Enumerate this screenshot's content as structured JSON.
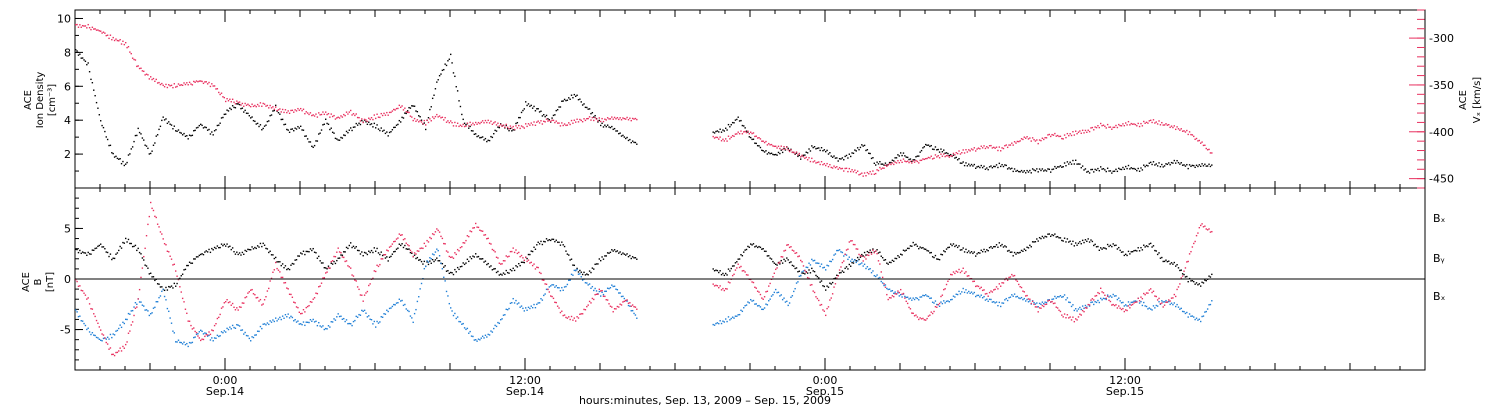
{
  "colors": {
    "black": "#000000",
    "pink": "#e8305f",
    "blue": "#1f7fd6"
  },
  "chart_data": [
    {
      "type": "scatter",
      "panel": "plasma",
      "x_range": [
        -6.0,
        48.0
      ],
      "left_axis": {
        "label_lines": [
          "ACE",
          "Ion Density",
          "[cm⁻³]"
        ],
        "ylim": [
          0,
          10.5
        ],
        "ticks": [
          2,
          4,
          6,
          8,
          10
        ],
        "tick_labels": [
          "2",
          "4",
          "6",
          "8",
          "10"
        ]
      },
      "right_axis": {
        "label": "ACE",
        "label2": "Vₓ [km/s]",
        "ylim": [
          -460,
          -270
        ],
        "ticks": [
          -450,
          -400,
          -350,
          -300
        ],
        "tick_labels": [
          "-450",
          "-400",
          "-350",
          "-300"
        ],
        "color": "#e8305f"
      },
      "series": [
        {
          "axis": "left",
          "color": "#000000",
          "x": [
            -6.0,
            -5.5,
            -5.0,
            -4.5,
            -4.0,
            -3.5,
            -3.0,
            -2.5,
            -2.0,
            -1.5,
            -1.0,
            -0.5,
            0.0,
            0.5,
            1.0,
            1.5,
            2.0,
            2.5,
            3.0,
            3.5,
            4.0,
            4.5,
            5.0,
            5.5,
            6.0,
            6.5,
            7.0,
            7.5,
            8.0,
            8.5,
            9.0,
            9.5,
            10.0,
            10.5,
            11.0,
            11.5,
            12.0,
            12.5,
            13.0,
            13.5,
            14.0,
            14.5,
            15.0,
            15.5,
            16.0,
            16.5,
            19.5,
            20.0,
            20.5,
            21.0,
            21.5,
            22.0,
            22.5,
            23.0,
            23.5,
            24.0,
            24.5,
            25.0,
            25.5,
            26.0,
            26.5,
            27.0,
            27.5,
            28.0,
            28.5,
            29.0,
            29.5,
            30.0,
            30.5,
            31.0,
            31.5,
            32.0,
            32.5,
            33.0,
            33.5,
            34.0,
            34.5,
            35.0,
            35.5,
            36.0,
            36.5,
            37.0,
            37.5,
            38.0,
            38.5,
            39.0,
            39.5
          ],
          "y": [
            8.2,
            7.3,
            4.0,
            2.0,
            1.4,
            3.5,
            2.0,
            4.2,
            3.5,
            3.0,
            3.8,
            3.2,
            4.5,
            5.0,
            4.2,
            3.5,
            4.8,
            3.4,
            3.6,
            2.4,
            4.0,
            2.8,
            3.5,
            4.0,
            3.7,
            3.2,
            4.0,
            5.0,
            3.6,
            6.5,
            7.8,
            4.0,
            3.2,
            2.8,
            3.8,
            3.4,
            5.0,
            4.6,
            4.0,
            5.2,
            5.5,
            4.7,
            3.8,
            3.6,
            3.0,
            2.6,
            3.3,
            3.5,
            4.2,
            3.0,
            2.2,
            2.0,
            2.4,
            1.8,
            2.5,
            2.2,
            1.7,
            2.0,
            2.6,
            1.5,
            1.4,
            2.1,
            1.6,
            2.6,
            2.3,
            2.0,
            1.5,
            1.3,
            1.2,
            1.4,
            1.1,
            1.0,
            1.1,
            1.1,
            1.4,
            1.6,
            1.0,
            1.2,
            1.0,
            1.3,
            1.1,
            1.5,
            1.4,
            1.6,
            1.3,
            1.4,
            1.3
          ]
        },
        {
          "axis": "right",
          "color": "#e8305f",
          "x": [
            -6.0,
            -5.5,
            -5.0,
            -4.5,
            -4.0,
            -3.5,
            -3.0,
            -2.5,
            -2.0,
            -1.5,
            -1.0,
            -0.5,
            0.0,
            0.5,
            1.0,
            1.5,
            2.0,
            2.5,
            3.0,
            3.5,
            4.0,
            4.5,
            5.0,
            5.5,
            6.0,
            6.5,
            7.0,
            7.5,
            8.0,
            8.5,
            9.0,
            9.5,
            10.0,
            10.5,
            11.0,
            11.5,
            12.0,
            12.5,
            13.0,
            13.5,
            14.0,
            14.5,
            15.0,
            15.5,
            16.0,
            16.5,
            19.5,
            20.0,
            20.5,
            21.0,
            21.5,
            22.0,
            22.5,
            23.0,
            23.5,
            24.0,
            24.5,
            25.0,
            25.5,
            26.0,
            26.5,
            27.0,
            27.5,
            28.0,
            28.5,
            29.0,
            29.5,
            30.0,
            30.5,
            31.0,
            31.5,
            32.0,
            32.5,
            33.0,
            33.5,
            34.0,
            34.5,
            35.0,
            35.5,
            36.0,
            36.5,
            37.0,
            37.5,
            38.0,
            38.5,
            39.0,
            39.5
          ],
          "y": [
            -285,
            -287,
            -292,
            -300,
            -305,
            -330,
            -342,
            -350,
            -350,
            -348,
            -345,
            -350,
            -365,
            -368,
            -372,
            -370,
            -375,
            -378,
            -376,
            -382,
            -380,
            -385,
            -378,
            -388,
            -383,
            -380,
            -372,
            -385,
            -390,
            -382,
            -390,
            -393,
            -390,
            -388,
            -392,
            -395,
            -393,
            -390,
            -387,
            -392,
            -388,
            -385,
            -387,
            -384,
            -385,
            -386,
            -405,
            -408,
            -400,
            -400,
            -410,
            -415,
            -418,
            -425,
            -430,
            -435,
            -438,
            -440,
            -445,
            -442,
            -435,
            -430,
            -432,
            -428,
            -425,
            -425,
            -420,
            -418,
            -415,
            -418,
            -412,
            -405,
            -410,
            -402,
            -405,
            -400,
            -398,
            -392,
            -395,
            -390,
            -392,
            -388,
            -390,
            -395,
            -400,
            -410,
            -425
          ]
        }
      ]
    },
    {
      "type": "scatter",
      "panel": "magnetic-field",
      "x_range": [
        -6.0,
        48.0
      ],
      "left_axis": {
        "label_lines": [
          "ACE",
          "B",
          "[nT]"
        ],
        "ylim": [
          -9,
          9
        ],
        "ticks": [
          -5,
          0,
          5
        ],
        "tick_labels": [
          "-5",
          "0",
          "5"
        ]
      },
      "zero_line": 0,
      "series": [
        {
          "name": "Bₓ",
          "color": "#000000",
          "x": [
            -6.0,
            -5.5,
            -5.0,
            -4.5,
            -4.0,
            -3.5,
            -3.0,
            -2.5,
            -2.0,
            -1.5,
            -1.0,
            -0.5,
            0.0,
            0.5,
            1.0,
            1.5,
            2.0,
            2.5,
            3.0,
            3.5,
            4.0,
            4.5,
            5.0,
            5.5,
            6.0,
            6.5,
            7.0,
            7.5,
            8.0,
            8.5,
            9.0,
            9.5,
            10.0,
            10.5,
            11.0,
            11.5,
            12.0,
            12.5,
            13.0,
            13.5,
            14.0,
            14.5,
            15.0,
            15.5,
            16.0,
            16.5,
            19.5,
            20.0,
            20.5,
            21.0,
            21.5,
            22.0,
            22.5,
            23.0,
            23.5,
            24.0,
            24.5,
            25.0,
            25.5,
            26.0,
            26.5,
            27.0,
            27.5,
            28.0,
            28.5,
            29.0,
            29.5,
            30.0,
            30.5,
            31.0,
            31.5,
            32.0,
            32.5,
            33.0,
            33.5,
            34.0,
            34.5,
            35.0,
            35.5,
            36.0,
            36.5,
            37.0,
            37.5,
            38.0,
            38.5,
            39.0,
            39.5
          ],
          "y": [
            3.0,
            2.5,
            3.5,
            2.0,
            4.0,
            3.0,
            0.5,
            -1.0,
            -0.5,
            1.5,
            2.5,
            3.0,
            3.5,
            2.5,
            3.0,
            3.5,
            2.0,
            1.0,
            2.5,
            3.0,
            1.0,
            2.0,
            3.5,
            2.5,
            3.0,
            2.0,
            3.5,
            2.5,
            1.5,
            2.0,
            0.5,
            1.5,
            2.5,
            1.5,
            0.5,
            1.0,
            2.0,
            3.5,
            4.0,
            3.5,
            1.0,
            0.5,
            2.0,
            3.0,
            2.5,
            2.0,
            1.0,
            0.5,
            2.0,
            3.5,
            3.0,
            1.5,
            2.0,
            0.5,
            1.0,
            -1.0,
            0.5,
            1.5,
            2.5,
            3.0,
            1.5,
            2.5,
            3.5,
            3.0,
            2.0,
            3.5,
            3.0,
            2.5,
            3.0,
            3.5,
            2.5,
            3.0,
            4.0,
            4.5,
            4.0,
            3.5,
            4.0,
            3.0,
            3.5,
            2.5,
            3.0,
            3.5,
            2.0,
            1.5,
            0.0,
            -0.5,
            0.5
          ]
        },
        {
          "name": "Bᵧ",
          "color": "#1f7fd6",
          "x": [
            -6.0,
            -5.5,
            -5.0,
            -4.5,
            -4.0,
            -3.5,
            -3.0,
            -2.5,
            -2.0,
            -1.5,
            -1.0,
            -0.5,
            0.0,
            0.5,
            1.0,
            1.5,
            2.0,
            2.5,
            3.0,
            3.5,
            4.0,
            4.5,
            5.0,
            5.5,
            6.0,
            6.5,
            7.0,
            7.5,
            8.0,
            8.5,
            9.0,
            9.5,
            10.0,
            10.5,
            11.0,
            11.5,
            12.0,
            12.5,
            13.0,
            13.5,
            14.0,
            14.5,
            15.0,
            15.5,
            16.0,
            16.5,
            19.5,
            20.0,
            20.5,
            21.0,
            21.5,
            22.0,
            22.5,
            23.0,
            23.5,
            24.0,
            24.5,
            25.0,
            25.5,
            26.0,
            26.5,
            27.0,
            27.5,
            28.0,
            28.5,
            29.0,
            29.5,
            30.0,
            30.5,
            31.0,
            31.5,
            32.0,
            32.5,
            33.0,
            33.5,
            34.0,
            34.5,
            35.0,
            35.5,
            36.0,
            36.5,
            37.0,
            37.5,
            38.0,
            38.5,
            39.0,
            39.5
          ],
          "y": [
            -3.0,
            -5.0,
            -6.0,
            -5.5,
            -4.0,
            -2.0,
            -3.5,
            -1.0,
            -6.0,
            -6.5,
            -5.0,
            -6.0,
            -5.0,
            -4.5,
            -6.0,
            -4.5,
            -4.0,
            -3.5,
            -4.5,
            -4.0,
            -5.0,
            -3.5,
            -4.5,
            -3.0,
            -4.5,
            -3.0,
            -2.0,
            -4.0,
            1.5,
            3.0,
            -3.0,
            -4.5,
            -6.0,
            -5.5,
            -4.0,
            -2.0,
            -3.0,
            -2.5,
            -0.5,
            -1.0,
            1.0,
            -0.5,
            -1.5,
            -0.5,
            -2.0,
            -4.0,
            -4.5,
            -4.0,
            -3.5,
            -2.0,
            -3.0,
            -1.0,
            -2.5,
            0.5,
            2.0,
            1.0,
            3.0,
            2.0,
            1.5,
            0.5,
            -1.0,
            -1.5,
            -2.0,
            -1.5,
            -2.5,
            -2.0,
            -1.0,
            -1.5,
            -2.0,
            -2.5,
            -1.5,
            -2.0,
            -2.5,
            -2.0,
            -1.5,
            -3.0,
            -2.5,
            -2.0,
            -1.5,
            -2.5,
            -2.0,
            -3.0,
            -2.0,
            -2.5,
            -3.5,
            -4.0,
            -2.0
          ]
        },
        {
          "name": "Bₓ",
          "label_color": "pink",
          "color": "#e8305f",
          "x": [
            -6.0,
            -5.5,
            -5.0,
            -4.5,
            -4.0,
            -3.5,
            -3.0,
            -2.5,
            -2.0,
            -1.5,
            -1.0,
            -0.5,
            0.0,
            0.5,
            1.0,
            1.5,
            2.0,
            2.5,
            3.0,
            3.5,
            4.0,
            4.5,
            5.0,
            5.5,
            6.0,
            6.5,
            7.0,
            7.5,
            8.0,
            8.5,
            9.0,
            9.5,
            10.0,
            10.5,
            11.0,
            11.5,
            12.0,
            12.5,
            13.0,
            13.5,
            14.0,
            14.5,
            15.0,
            15.5,
            16.0,
            16.5,
            19.5,
            20.0,
            20.5,
            21.0,
            21.5,
            22.0,
            22.5,
            23.0,
            23.5,
            24.0,
            24.5,
            25.0,
            25.5,
            26.0,
            26.5,
            27.0,
            27.5,
            28.0,
            28.5,
            29.0,
            29.5,
            30.0,
            30.5,
            31.0,
            31.5,
            32.0,
            32.5,
            33.0,
            33.5,
            34.0,
            34.5,
            35.0,
            35.5,
            36.0,
            36.5,
            37.0,
            37.5,
            38.0,
            38.5,
            39.0,
            39.5
          ],
          "y": [
            0.0,
            -2.0,
            -5.0,
            -7.5,
            -6.5,
            -2.0,
            7.5,
            4.0,
            1.0,
            -4.0,
            -6.0,
            -5.0,
            -2.0,
            -3.0,
            -1.0,
            -2.5,
            1.5,
            -1.0,
            -3.5,
            -2.0,
            0.5,
            3.0,
            1.0,
            -2.0,
            1.0,
            3.0,
            4.5,
            2.5,
            3.5,
            5.0,
            2.0,
            3.5,
            5.5,
            4.0,
            1.5,
            3.0,
            2.0,
            1.0,
            -1.5,
            -3.5,
            -4.0,
            -2.5,
            -1.0,
            -3.0,
            -2.0,
            -3.0,
            -0.5,
            -1.0,
            1.5,
            0.0,
            -2.0,
            1.0,
            3.5,
            2.0,
            -1.0,
            -3.5,
            0.5,
            4.0,
            2.0,
            3.0,
            -2.0,
            -1.0,
            -3.5,
            -4.0,
            -2.5,
            0.5,
            1.0,
            -0.5,
            -1.5,
            -0.5,
            0.5,
            -1.5,
            -3.0,
            -2.0,
            -3.5,
            -4.0,
            -2.5,
            -1.0,
            -2.5,
            -3.0,
            -2.0,
            -1.0,
            -2.5,
            -1.5,
            2.0,
            5.5,
            4.5
          ]
        }
      ],
      "legend": [
        "Bₓ",
        "Bᵧ",
        "Bₓ"
      ],
      "legend_position": "right"
    }
  ],
  "x_axis": {
    "major_ticks": [
      0,
      12,
      24,
      36
    ],
    "tick_labels_top": [
      "0:00",
      "12:00",
      "0:00",
      "12:00"
    ],
    "tick_labels_bottom": [
      "Sep.14",
      "Sep.14",
      "Sep.15",
      "Sep.15"
    ],
    "title": "hours:minutes, Sep. 13, 2009 – Sep. 15, 2009"
  },
  "text": {
    "top_left_label_1": "ACE",
    "top_left_label_2": "Ion Density",
    "top_left_label_3": "[cm⁻³]",
    "top_right_label_1": "ACE",
    "top_right_label_2": "Vₓ [km/s]",
    "bottom_left_label_1": "ACE",
    "bottom_left_label_2": "B",
    "bottom_left_label_3": "[nT]",
    "legend_bx": "Bₓ",
    "legend_by": "Bᵧ",
    "legend_bz": "Bₓ",
    "xtitle": "hours:minutes, Sep. 13, 2009 – Sep. 15, 2009"
  }
}
